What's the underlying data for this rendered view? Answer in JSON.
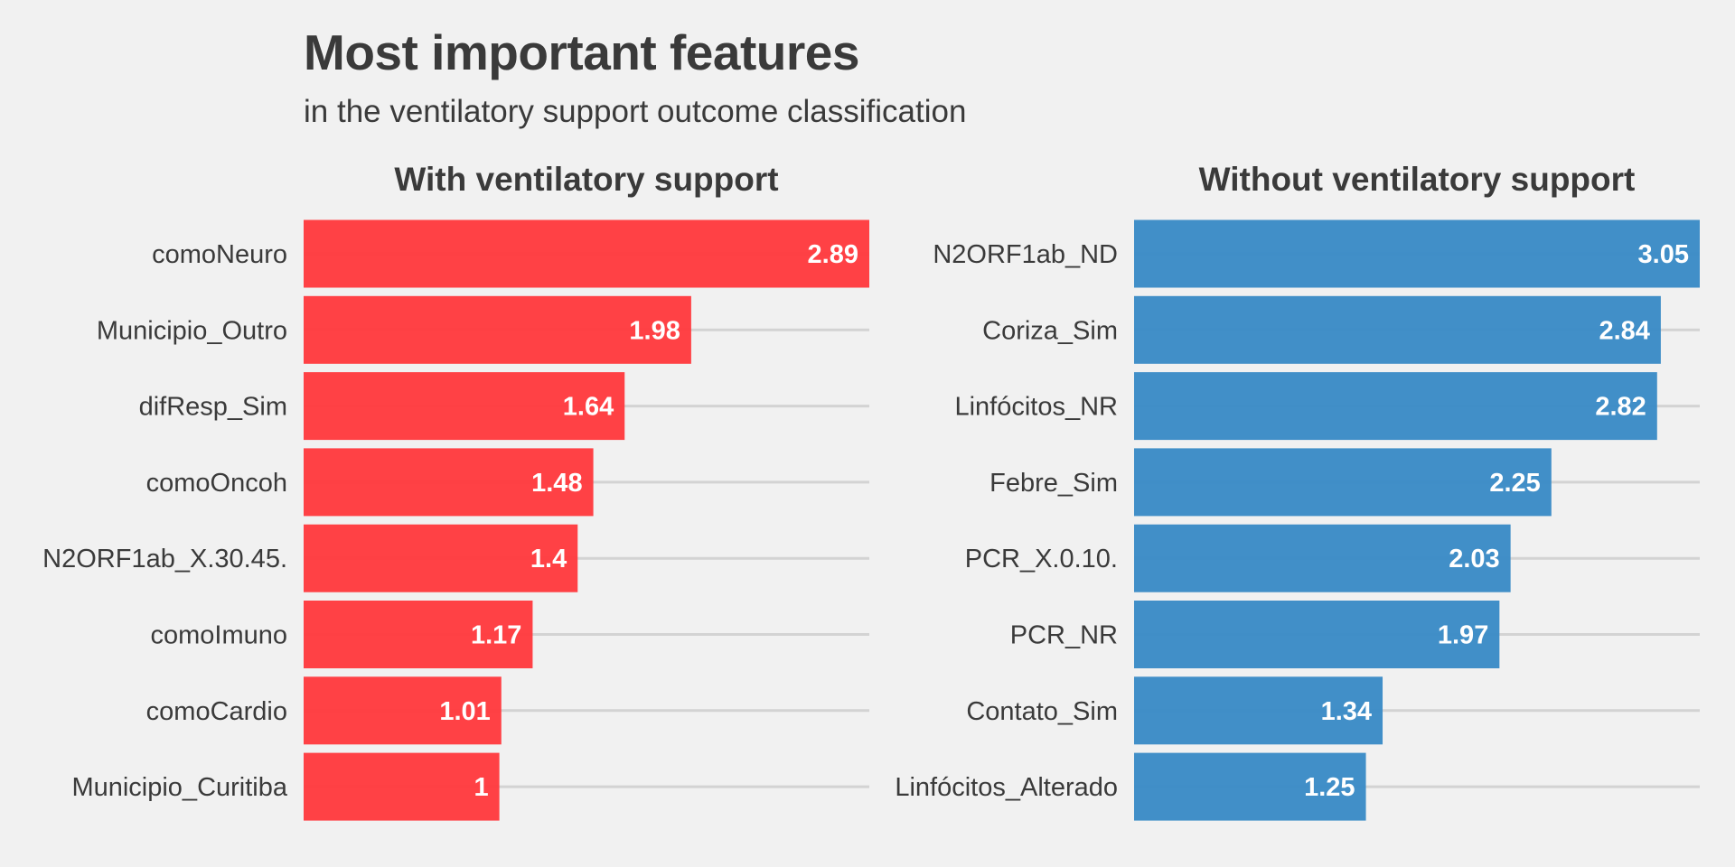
{
  "chart_data": {
    "type": "bar",
    "orientation": "horizontal",
    "title": "Most important features",
    "subtitle": "in the ventilatory support outcome classification",
    "grid": "horizontal lines at each category",
    "facets": [
      {
        "title": "With ventilatory support",
        "color": "#ff3b3f",
        "categories": [
          "comoNeuro",
          "Municipio_Outro",
          "difResp_Sim",
          "comoOncoh",
          "N2ORF1ab_X.30.45.",
          "comoImuno",
          "comoCardio",
          "Municipio_Curitiba"
        ],
        "values": [
          2.89,
          1.98,
          1.64,
          1.48,
          1.4,
          1.17,
          1.01,
          1
        ],
        "value_labels": [
          "2.89",
          "1.98",
          "1.64",
          "1.48",
          "1.4",
          "1.17",
          "1.01",
          "1"
        ]
      },
      {
        "title": "Without ventilatory support",
        "color": "#3b8bc6",
        "categories": [
          "N2ORF1ab_ND",
          "Coriza_Sim",
          "Linfócitos_NR",
          "Febre_Sim",
          "PCR_X.0.10.",
          "PCR_NR",
          "Contato_Sim",
          "Linfócitos_Alterado"
        ],
        "values": [
          3.05,
          2.84,
          2.82,
          2.25,
          2.03,
          1.97,
          1.34,
          1.25
        ],
        "value_labels": [
          "3.05",
          "2.84",
          "2.82",
          "2.25",
          "2.03",
          "1.97",
          "1.34",
          "1.25"
        ]
      }
    ]
  }
}
